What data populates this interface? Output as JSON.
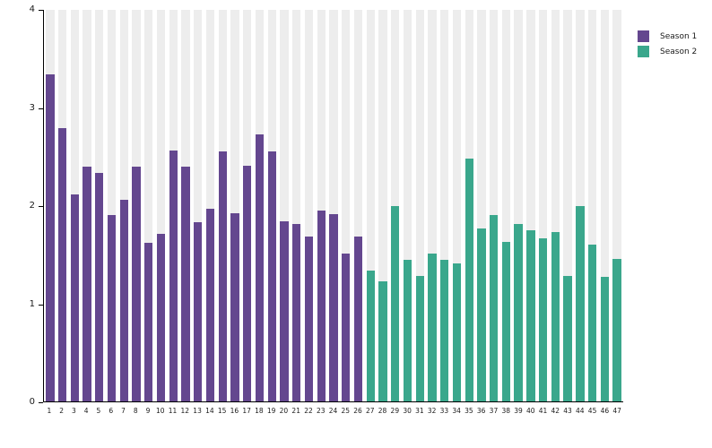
{
  "chart_data": {
    "type": "bar",
    "title": "",
    "xlabel": "",
    "ylabel": "",
    "ylim": [
      0,
      4
    ],
    "yticks": [
      0,
      1,
      2,
      3,
      4
    ],
    "grid": false,
    "legend_position": "top-right-outside",
    "plot_band_color": "#ededed",
    "axis_color": "#000000",
    "categories": [
      "1",
      "2",
      "3",
      "4",
      "5",
      "6",
      "7",
      "8",
      "9",
      "10",
      "11",
      "12",
      "13",
      "14",
      "15",
      "16",
      "17",
      "18",
      "19",
      "20",
      "21",
      "22",
      "23",
      "24",
      "25",
      "26",
      "27",
      "28",
      "29",
      "30",
      "31",
      "32",
      "33",
      "34",
      "35",
      "36",
      "37",
      "38",
      "39",
      "40",
      "41",
      "42",
      "43",
      "44",
      "45",
      "46",
      "47"
    ],
    "series": [
      {
        "name": "Season 1",
        "color": "#64478f",
        "start_category": 1,
        "values": [
          3.34,
          2.79,
          2.11,
          2.4,
          2.33,
          1.9,
          2.06,
          2.4,
          1.62,
          1.71,
          2.56,
          2.4,
          1.83,
          1.97,
          2.55,
          1.92,
          2.41,
          2.73,
          2.55,
          1.84,
          1.81,
          1.68,
          1.95,
          1.91,
          1.51,
          1.68
        ]
      },
      {
        "name": "Season 2",
        "color": "#3aa78c",
        "start_category": 27,
        "values": [
          1.34,
          1.23,
          2.0,
          1.45,
          1.28,
          1.51,
          1.45,
          1.41,
          2.48,
          1.77,
          1.9,
          1.63,
          1.81,
          1.75,
          1.67,
          1.73,
          1.28,
          2.0,
          1.6,
          1.27,
          1.46
        ]
      }
    ]
  },
  "legend": {
    "items": [
      {
        "label": "Season 1",
        "color": "#64478f"
      },
      {
        "label": "Season 2",
        "color": "#3aa78c"
      }
    ]
  }
}
